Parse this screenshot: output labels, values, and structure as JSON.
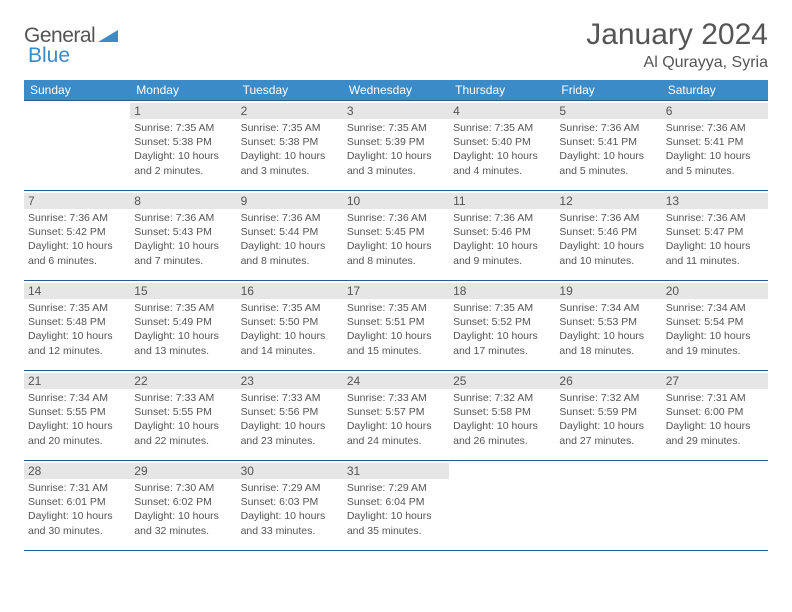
{
  "brand": {
    "part1": "General",
    "part2": "Blue"
  },
  "title": "January 2024",
  "location": "Al Qurayya, Syria",
  "colors": {
    "header_bg": "#3b8bc8",
    "border": "#2c5a8a",
    "daynum_bg": "#e6e6e6",
    "text": "#555555",
    "page_bg": "#ffffff"
  },
  "weekdays": [
    "Sunday",
    "Monday",
    "Tuesday",
    "Wednesday",
    "Thursday",
    "Friday",
    "Saturday"
  ],
  "weeks": [
    [
      null,
      {
        "n": "1",
        "sr": "7:35 AM",
        "ss": "5:38 PM",
        "dl": "10 hours and 2 minutes."
      },
      {
        "n": "2",
        "sr": "7:35 AM",
        "ss": "5:38 PM",
        "dl": "10 hours and 3 minutes."
      },
      {
        "n": "3",
        "sr": "7:35 AM",
        "ss": "5:39 PM",
        "dl": "10 hours and 3 minutes."
      },
      {
        "n": "4",
        "sr": "7:35 AM",
        "ss": "5:40 PM",
        "dl": "10 hours and 4 minutes."
      },
      {
        "n": "5",
        "sr": "7:36 AM",
        "ss": "5:41 PM",
        "dl": "10 hours and 5 minutes."
      },
      {
        "n": "6",
        "sr": "7:36 AM",
        "ss": "5:41 PM",
        "dl": "10 hours and 5 minutes."
      }
    ],
    [
      {
        "n": "7",
        "sr": "7:36 AM",
        "ss": "5:42 PM",
        "dl": "10 hours and 6 minutes."
      },
      {
        "n": "8",
        "sr": "7:36 AM",
        "ss": "5:43 PM",
        "dl": "10 hours and 7 minutes."
      },
      {
        "n": "9",
        "sr": "7:36 AM",
        "ss": "5:44 PM",
        "dl": "10 hours and 8 minutes."
      },
      {
        "n": "10",
        "sr": "7:36 AM",
        "ss": "5:45 PM",
        "dl": "10 hours and 8 minutes."
      },
      {
        "n": "11",
        "sr": "7:36 AM",
        "ss": "5:46 PM",
        "dl": "10 hours and 9 minutes."
      },
      {
        "n": "12",
        "sr": "7:36 AM",
        "ss": "5:46 PM",
        "dl": "10 hours and 10 minutes."
      },
      {
        "n": "13",
        "sr": "7:36 AM",
        "ss": "5:47 PM",
        "dl": "10 hours and 11 minutes."
      }
    ],
    [
      {
        "n": "14",
        "sr": "7:35 AM",
        "ss": "5:48 PM",
        "dl": "10 hours and 12 minutes."
      },
      {
        "n": "15",
        "sr": "7:35 AM",
        "ss": "5:49 PM",
        "dl": "10 hours and 13 minutes."
      },
      {
        "n": "16",
        "sr": "7:35 AM",
        "ss": "5:50 PM",
        "dl": "10 hours and 14 minutes."
      },
      {
        "n": "17",
        "sr": "7:35 AM",
        "ss": "5:51 PM",
        "dl": "10 hours and 15 minutes."
      },
      {
        "n": "18",
        "sr": "7:35 AM",
        "ss": "5:52 PM",
        "dl": "10 hours and 17 minutes."
      },
      {
        "n": "19",
        "sr": "7:34 AM",
        "ss": "5:53 PM",
        "dl": "10 hours and 18 minutes."
      },
      {
        "n": "20",
        "sr": "7:34 AM",
        "ss": "5:54 PM",
        "dl": "10 hours and 19 minutes."
      }
    ],
    [
      {
        "n": "21",
        "sr": "7:34 AM",
        "ss": "5:55 PM",
        "dl": "10 hours and 20 minutes."
      },
      {
        "n": "22",
        "sr": "7:33 AM",
        "ss": "5:55 PM",
        "dl": "10 hours and 22 minutes."
      },
      {
        "n": "23",
        "sr": "7:33 AM",
        "ss": "5:56 PM",
        "dl": "10 hours and 23 minutes."
      },
      {
        "n": "24",
        "sr": "7:33 AM",
        "ss": "5:57 PM",
        "dl": "10 hours and 24 minutes."
      },
      {
        "n": "25",
        "sr": "7:32 AM",
        "ss": "5:58 PM",
        "dl": "10 hours and 26 minutes."
      },
      {
        "n": "26",
        "sr": "7:32 AM",
        "ss": "5:59 PM",
        "dl": "10 hours and 27 minutes."
      },
      {
        "n": "27",
        "sr": "7:31 AM",
        "ss": "6:00 PM",
        "dl": "10 hours and 29 minutes."
      }
    ],
    [
      {
        "n": "28",
        "sr": "7:31 AM",
        "ss": "6:01 PM",
        "dl": "10 hours and 30 minutes."
      },
      {
        "n": "29",
        "sr": "7:30 AM",
        "ss": "6:02 PM",
        "dl": "10 hours and 32 minutes."
      },
      {
        "n": "30",
        "sr": "7:29 AM",
        "ss": "6:03 PM",
        "dl": "10 hours and 33 minutes."
      },
      {
        "n": "31",
        "sr": "7:29 AM",
        "ss": "6:04 PM",
        "dl": "10 hours and 35 minutes."
      },
      null,
      null,
      null
    ]
  ],
  "labels": {
    "sunrise": "Sunrise:",
    "sunset": "Sunset:",
    "daylight": "Daylight:"
  }
}
